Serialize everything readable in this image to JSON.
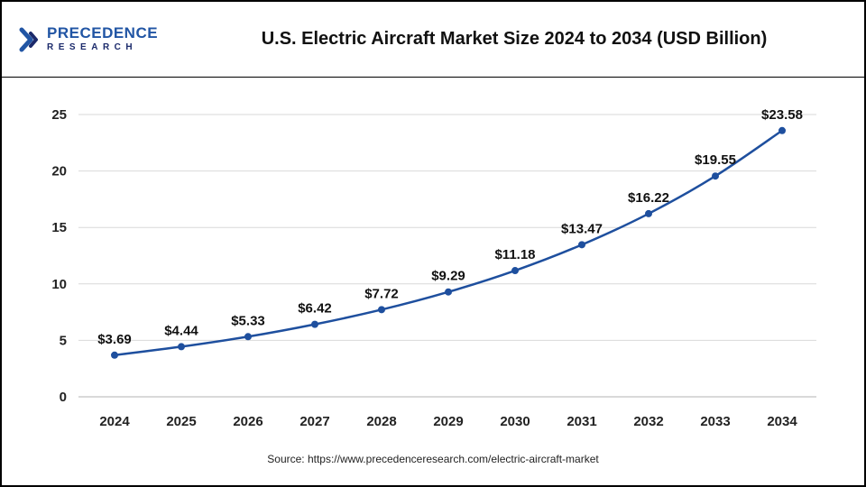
{
  "header": {
    "logo": {
      "line1": "PRECEDENCE",
      "line2": "RESEARCH"
    },
    "title": "U.S. Electric Aircraft Market Size 2024 to 2034 (USD Billion)"
  },
  "footer": {
    "source": "Source: https://www.precedenceresearch.com/electric-aircraft-market"
  },
  "colors": {
    "line": "#1e4f9e",
    "marker": "#1e4f9e",
    "grid": "#d9d9d9",
    "zero_line": "#b3b3b3",
    "logo_blue": "#2155a4",
    "logo_dark": "#1b2a6b"
  },
  "chart_data": {
    "type": "line",
    "title": "U.S. Electric Aircraft Market Size 2024 to 2034 (USD Billion)",
    "categories": [
      "2024",
      "2025",
      "2026",
      "2027",
      "2028",
      "2029",
      "2030",
      "2031",
      "2032",
      "2033",
      "2034"
    ],
    "values": [
      3.69,
      4.44,
      5.33,
      6.42,
      7.72,
      9.29,
      11.18,
      13.47,
      16.22,
      19.55,
      23.58
    ],
    "labels": [
      "$3.69",
      "$4.44",
      "$5.33",
      "$6.42",
      "$7.72",
      "$9.29",
      "$11.18",
      "$13.47",
      "$16.22",
      "$19.55",
      "$23.58"
    ],
    "xlabel": "",
    "ylabel": "",
    "ylim": [
      0,
      25
    ],
    "yticks": [
      0,
      5,
      10,
      15,
      20,
      25
    ],
    "grid": "horizontal",
    "legend": "none"
  }
}
